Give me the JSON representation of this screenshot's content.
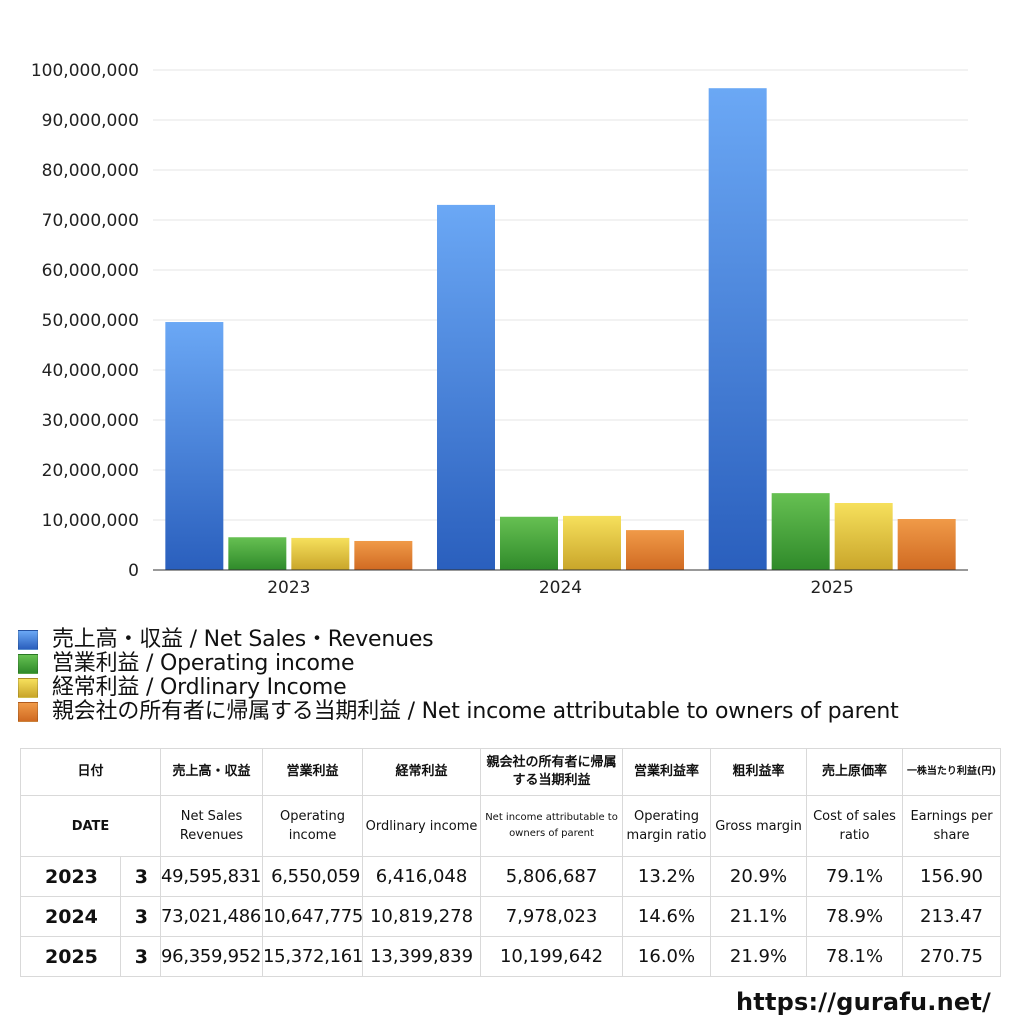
{
  "chart_data": {
    "type": "bar",
    "categories": [
      "2023",
      "2024",
      "2025"
    ],
    "series": [
      {
        "name": "売上高・収益 / Net Sales・Revenues",
        "values": [
          49595831,
          73021486,
          96359952
        ],
        "color_top": "#6ba8f5",
        "color_bottom": "#2a5fbd"
      },
      {
        "name": "営業利益 / Operating income",
        "values": [
          6550059,
          10647775,
          15372161
        ],
        "color_top": "#66c052",
        "color_bottom": "#2f8a2a"
      },
      {
        "name": "経常利益 / Ordlinary Income",
        "values": [
          6416048,
          10819278,
          13399839
        ],
        "color_top": "#f6e05c",
        "color_bottom": "#c9a52a"
      },
      {
        "name": "親会社の所有者に帰属する当期利益 / Net income attributable to owners of parent",
        "values": [
          5806687,
          7978023,
          10199642
        ],
        "color_top": "#f09a48",
        "color_bottom": "#d06a22"
      }
    ],
    "ylim": [
      0,
      100000000
    ],
    "yticks": [
      "0",
      "10,000,000",
      "20,000,000",
      "30,000,000",
      "40,000,000",
      "50,000,000",
      "60,000,000",
      "70,000,000",
      "80,000,000",
      "90,000,000",
      "100,000,000"
    ],
    "grid": true,
    "legend_position": "bottom-left"
  },
  "table": {
    "headers_jp": [
      "日付",
      "売上高・収益",
      "営業利益",
      "経常利益",
      "親会社の所有者に帰属する当期利益",
      "営業利益率",
      "粗利益率",
      "売上原価率",
      "一株当たり利益(円)"
    ],
    "headers_en": [
      "DATE",
      "Net Sales Revenues",
      "Operating income",
      "Ordlinary income",
      "Net income attributable to owners of parent",
      "Operating margin ratio",
      "Gross margin",
      "Cost of sales ratio",
      "Earnings per share"
    ],
    "rows": [
      {
        "year": "2023",
        "month": "3",
        "sales": "49,595,831",
        "op": "6,550,059",
        "ord": "6,416,048",
        "net": "5,806,687",
        "opm": "13.2%",
        "gm": "20.9%",
        "cos": "79.1%",
        "eps": "156.90"
      },
      {
        "year": "2024",
        "month": "3",
        "sales": "73,021,486",
        "op": "10,647,775",
        "ord": "10,819,278",
        "net": "7,978,023",
        "opm": "14.6%",
        "gm": "21.1%",
        "cos": "78.9%",
        "eps": "213.47"
      },
      {
        "year": "2025",
        "month": "3",
        "sales": "96,359,952",
        "op": "15,372,161",
        "ord": "13,399,839",
        "net": "10,199,642",
        "opm": "16.0%",
        "gm": "21.9%",
        "cos": "78.1%",
        "eps": "270.75"
      }
    ]
  },
  "watermark": "https://gurafu.net/"
}
